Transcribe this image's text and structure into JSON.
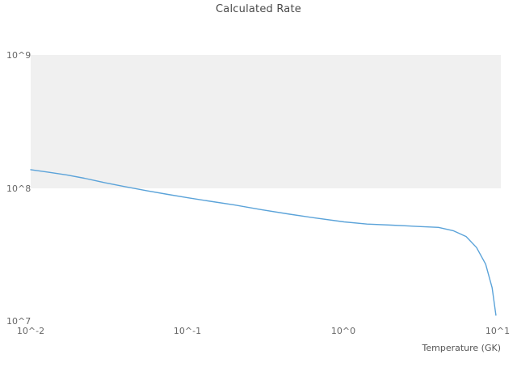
{
  "title": "Calculated Rate",
  "colors": {
    "title_text": "#4a4a4a",
    "tick_text": "#666666",
    "background": "#ffffff",
    "band": "#f0f0f0",
    "line": "#5ba3d9"
  },
  "chart_data": {
    "type": "line",
    "title": "Calculated Rate",
    "xlabel": "Temperature (GK)",
    "ylabel": "",
    "xscale": "log",
    "yscale": "log",
    "xlim": [
      0.01,
      10
    ],
    "ylim": [
      10000000,
      1000000000
    ],
    "xtick_labels": [
      "10^-2",
      "10^-1",
      "10^0",
      "10^1"
    ],
    "ytick_labels": [
      "10^7",
      "10^8",
      "10^9"
    ],
    "grid": "banded",
    "legend_position": "none",
    "band": {
      "from": 100000000,
      "to": 1000000000,
      "color": "#f0f0f0"
    },
    "line_color": "#5ba3d9",
    "series": [
      {
        "name": "calculated-rate",
        "x": [
          0.01,
          0.013,
          0.017,
          0.022,
          0.03,
          0.04,
          0.055,
          0.075,
          0.1,
          0.14,
          0.2,
          0.3,
          0.45,
          0.65,
          1.0,
          1.4,
          2.0,
          2.8,
          4.0,
          5.0,
          6.0,
          7.0,
          8.0,
          8.8,
          9.3
        ],
        "y": [
          138000000,
          132000000,
          126000000,
          119000000,
          110000000,
          103000000,
          96000000,
          90000000,
          85000000,
          80000000,
          75000000,
          69000000,
          64000000,
          60000000,
          56000000,
          54000000,
          53000000,
          52000000,
          51000000,
          48000000,
          43500000,
          36000000,
          27000000,
          18000000,
          11200000
        ]
      }
    ]
  }
}
